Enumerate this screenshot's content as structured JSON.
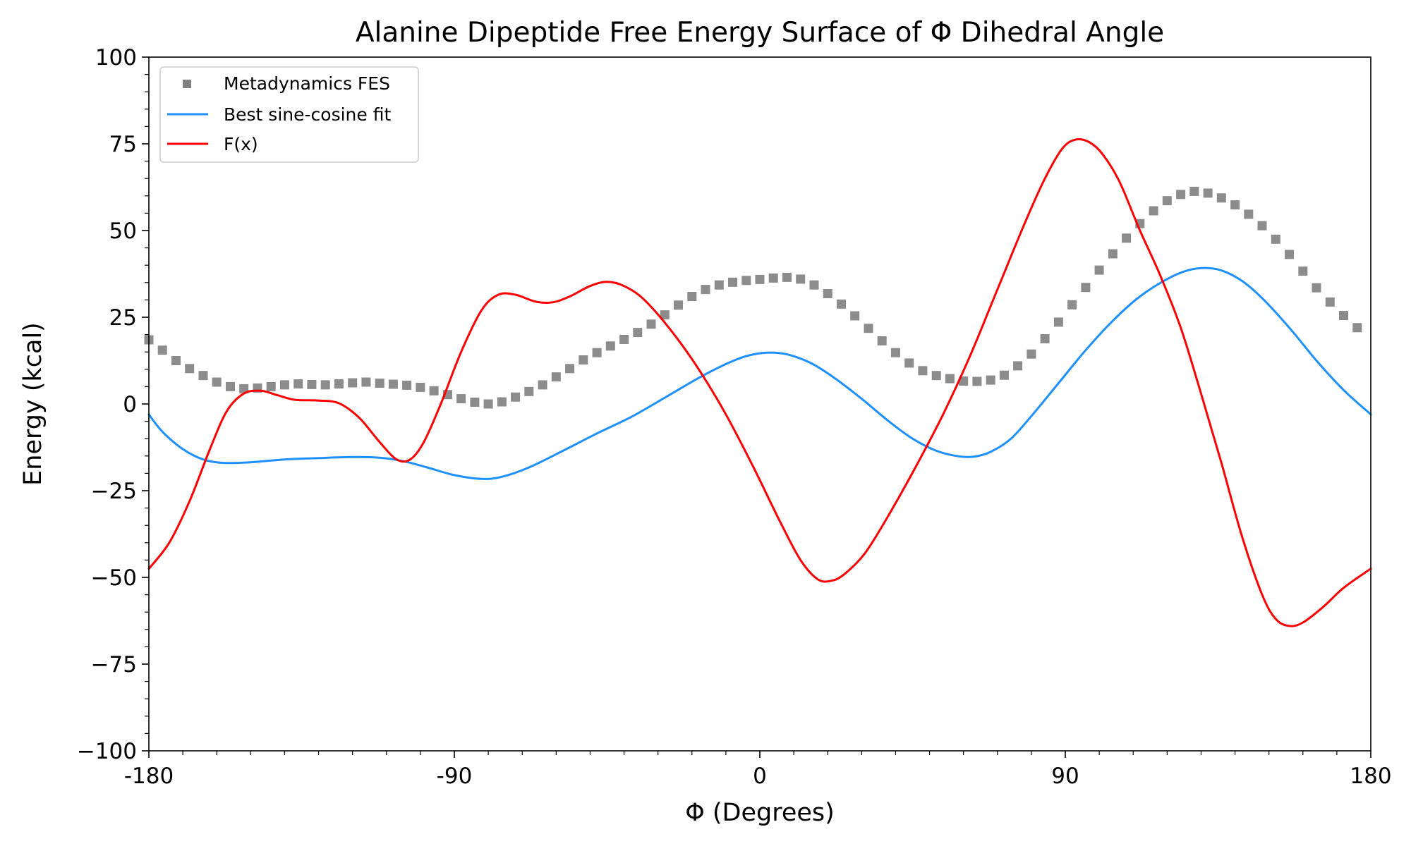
{
  "chart_data": {
    "type": "line",
    "title": "Alanine Dipeptide Free Energy Surface of Φ Dihedral Angle",
    "xlabel": "Φ (Degrees)",
    "ylabel": "Energy (kcal)",
    "xlim": [
      -180,
      180
    ],
    "ylim": [
      -100,
      100
    ],
    "x_ticks": [
      "-180",
      "-90",
      "0",
      "90",
      "180"
    ],
    "x_tick_values": [
      -180,
      -90,
      0,
      90,
      180
    ],
    "y_ticks": [
      "100",
      "75",
      "50",
      "25",
      "0",
      "−25",
      "−50",
      "−75",
      "−100"
    ],
    "y_tick_values": [
      100,
      75,
      50,
      25,
      0,
      -25,
      -50,
      -75,
      -100
    ],
    "grid": false,
    "legend_position": "upper-left",
    "series": [
      {
        "name": "Metadynamics FES",
        "style": "square-markers",
        "color": "#808080",
        "points": [
          [
            -180,
            18.5
          ],
          [
            -176,
            15.5
          ],
          [
            -172,
            12.5
          ],
          [
            -168,
            10.2
          ],
          [
            -164,
            8.2
          ],
          [
            -160,
            6.3
          ],
          [
            -156,
            5.0
          ],
          [
            -152,
            4.4
          ],
          [
            -148,
            4.6
          ],
          [
            -144,
            5.0
          ],
          [
            -140,
            5.5
          ],
          [
            -136,
            5.8
          ],
          [
            -132,
            5.6
          ],
          [
            -128,
            5.5
          ],
          [
            -124,
            5.8
          ],
          [
            -120,
            6.1
          ],
          [
            -116,
            6.3
          ],
          [
            -112,
            6.0
          ],
          [
            -108,
            5.7
          ],
          [
            -104,
            5.4
          ],
          [
            -100,
            4.8
          ],
          [
            -96,
            3.8
          ],
          [
            -92,
            2.7
          ],
          [
            -88,
            1.5
          ],
          [
            -84,
            0.5
          ],
          [
            -80,
            0.0
          ],
          [
            -76,
            0.6
          ],
          [
            -72,
            2.0
          ],
          [
            -68,
            3.6
          ],
          [
            -64,
            5.5
          ],
          [
            -60,
            7.8
          ],
          [
            -56,
            10.2
          ],
          [
            -52,
            12.7
          ],
          [
            -48,
            14.8
          ],
          [
            -44,
            16.7
          ],
          [
            -40,
            18.6
          ],
          [
            -36,
            20.6
          ],
          [
            -32,
            23.0
          ],
          [
            -28,
            25.7
          ],
          [
            -24,
            28.5
          ],
          [
            -20,
            31.0
          ],
          [
            -16,
            33.0
          ],
          [
            -12,
            34.3
          ],
          [
            -8,
            35.1
          ],
          [
            -4,
            35.6
          ],
          [
            0,
            35.9
          ],
          [
            4,
            36.3
          ],
          [
            8,
            36.5
          ],
          [
            12,
            36.0
          ],
          [
            16,
            34.3
          ],
          [
            20,
            31.8
          ],
          [
            24,
            28.8
          ],
          [
            28,
            25.4
          ],
          [
            32,
            21.8
          ],
          [
            36,
            18.2
          ],
          [
            40,
            14.8
          ],
          [
            44,
            11.8
          ],
          [
            48,
            9.6
          ],
          [
            52,
            8.2
          ],
          [
            56,
            7.3
          ],
          [
            60,
            6.6
          ],
          [
            64,
            6.5
          ],
          [
            68,
            6.9
          ],
          [
            72,
            8.3
          ],
          [
            76,
            11.0
          ],
          [
            80,
            14.4
          ],
          [
            84,
            18.8
          ],
          [
            88,
            23.6
          ],
          [
            92,
            28.6
          ],
          [
            96,
            33.6
          ],
          [
            100,
            38.6
          ],
          [
            104,
            43.3
          ],
          [
            108,
            47.8
          ],
          [
            112,
            52.0
          ],
          [
            116,
            55.7
          ],
          [
            120,
            58.6
          ],
          [
            124,
            60.4
          ],
          [
            128,
            61.3
          ],
          [
            132,
            60.8
          ],
          [
            136,
            59.4
          ],
          [
            140,
            57.4
          ],
          [
            144,
            54.7
          ],
          [
            148,
            51.4
          ],
          [
            152,
            47.5
          ],
          [
            156,
            43.1
          ],
          [
            160,
            38.3
          ],
          [
            164,
            33.5
          ],
          [
            168,
            29.4
          ],
          [
            172,
            25.5
          ],
          [
            176,
            22.0
          ]
        ]
      },
      {
        "name": "Best sine-cosine fit",
        "style": "line",
        "color": "#1E90FF",
        "points": [
          [
            -180,
            -3
          ],
          [
            -176,
            -8
          ],
          [
            -170,
            -13
          ],
          [
            -164,
            -16
          ],
          [
            -158,
            -17
          ],
          [
            -150,
            -16.8
          ],
          [
            -140,
            -16
          ],
          [
            -130,
            -15.6
          ],
          [
            -120,
            -15.3
          ],
          [
            -112,
            -15.5
          ],
          [
            -105,
            -16.5
          ],
          [
            -98,
            -18.3
          ],
          [
            -90,
            -20.5
          ],
          [
            -82,
            -21.6
          ],
          [
            -76,
            -21
          ],
          [
            -68,
            -18.3
          ],
          [
            -58,
            -13.5
          ],
          [
            -48,
            -8.5
          ],
          [
            -38,
            -3.8
          ],
          [
            -28,
            1.8
          ],
          [
            -18,
            7.5
          ],
          [
            -10,
            11.5
          ],
          [
            -4,
            13.8
          ],
          [
            2,
            14.8
          ],
          [
            8,
            14.3
          ],
          [
            15,
            11.8
          ],
          [
            22,
            7.5
          ],
          [
            30,
            1.5
          ],
          [
            38,
            -5
          ],
          [
            45,
            -10
          ],
          [
            52,
            -13.5
          ],
          [
            58,
            -15
          ],
          [
            63,
            -15.2
          ],
          [
            68,
            -13.8
          ],
          [
            74,
            -10
          ],
          [
            80,
            -3.5
          ],
          [
            88,
            6
          ],
          [
            96,
            15.5
          ],
          [
            104,
            24
          ],
          [
            112,
            31
          ],
          [
            120,
            36
          ],
          [
            126,
            38.5
          ],
          [
            131,
            39.2
          ],
          [
            136,
            38.5
          ],
          [
            142,
            35.5
          ],
          [
            148,
            30.5
          ],
          [
            156,
            22
          ],
          [
            164,
            12.5
          ],
          [
            172,
            4
          ],
          [
            180,
            -3
          ]
        ]
      },
      {
        "name": "F(x)",
        "style": "line",
        "color": "#FF0000",
        "points": [
          [
            -180,
            -47.5
          ],
          [
            -174,
            -40
          ],
          [
            -168,
            -28
          ],
          [
            -162,
            -13
          ],
          [
            -157,
            -2
          ],
          [
            -152,
            3
          ],
          [
            -147,
            3.8
          ],
          [
            -142,
            2.5
          ],
          [
            -137,
            1.2
          ],
          [
            -130,
            1.0
          ],
          [
            -124,
            0.2
          ],
          [
            -118,
            -4
          ],
          [
            -112,
            -11
          ],
          [
            -107,
            -16
          ],
          [
            -103,
            -16
          ],
          [
            -99,
            -11
          ],
          [
            -94,
            0
          ],
          [
            -88,
            15
          ],
          [
            -82,
            27
          ],
          [
            -77,
            31.5
          ],
          [
            -72,
            31.5
          ],
          [
            -66,
            29.5
          ],
          [
            -61,
            29.3
          ],
          [
            -56,
            31
          ],
          [
            -50,
            34
          ],
          [
            -45,
            35.2
          ],
          [
            -40,
            34
          ],
          [
            -34,
            30
          ],
          [
            -26,
            21
          ],
          [
            -18,
            10
          ],
          [
            -10,
            -3
          ],
          [
            -2,
            -18
          ],
          [
            6,
            -34
          ],
          [
            12,
            -45
          ],
          [
            17,
            -50.5
          ],
          [
            21,
            -51
          ],
          [
            25,
            -49
          ],
          [
            31,
            -43
          ],
          [
            38,
            -32
          ],
          [
            46,
            -18
          ],
          [
            54,
            -3
          ],
          [
            62,
            14
          ],
          [
            70,
            33
          ],
          [
            78,
            52
          ],
          [
            84,
            65
          ],
          [
            89,
            73.5
          ],
          [
            93,
            76.2
          ],
          [
            97,
            75.5
          ],
          [
            101,
            72
          ],
          [
            106,
            64
          ],
          [
            112,
            50
          ],
          [
            118,
            37
          ],
          [
            124,
            22
          ],
          [
            130,
            3
          ],
          [
            136,
            -17
          ],
          [
            142,
            -38
          ],
          [
            148,
            -55
          ],
          [
            152,
            -62
          ],
          [
            156,
            -64
          ],
          [
            160,
            -63
          ],
          [
            166,
            -58.5
          ],
          [
            172,
            -53
          ],
          [
            180,
            -47.5
          ]
        ]
      }
    ]
  }
}
